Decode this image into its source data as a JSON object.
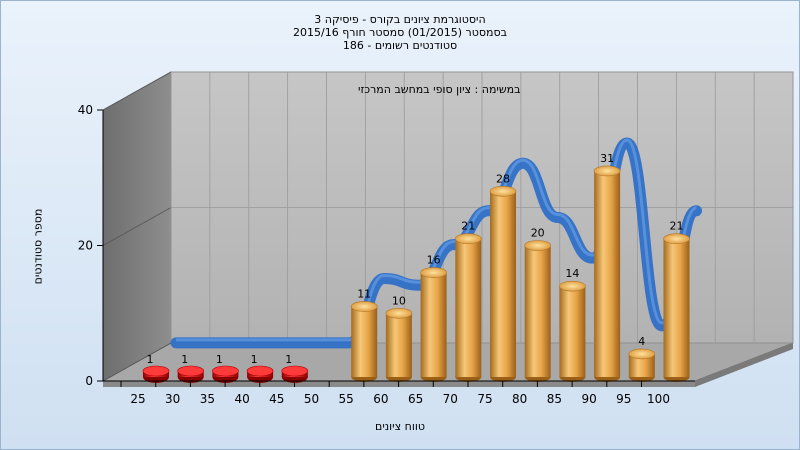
{
  "header": {
    "line1": "היסטוגרמת ציונים בקורס - פיסיקה 3",
    "line2": "בסמסטר  (01/2015)  סמסטר חורף 2015/16",
    "line3": "186 - סטודנטים רשומים"
  },
  "colors": {
    "bar_gold": "#e9a94a",
    "bar_red": "#dd1111",
    "curve_blue": "#2f6fc6",
    "wall": "#8c8c8c",
    "plot_bg": "#bdbdbd"
  },
  "chart_data": {
    "type": "bar",
    "title": "היסטוגרמת ציונים בקורס - פיסיקה 3",
    "annotation": "במשימה : ציון סופי במחשב המרכזי",
    "xlabel": "טווח ציונים",
    "ylabel": "מספר סטודנטים",
    "categories": [
      "25",
      "30",
      "35",
      "40",
      "45",
      "50",
      "55",
      "60",
      "65",
      "70",
      "75",
      "80",
      "85",
      "90",
      "95",
      "100"
    ],
    "values": [
      1,
      1,
      1,
      1,
      1,
      0,
      11,
      10,
      16,
      21,
      28,
      20,
      14,
      31,
      4,
      21
    ],
    "value_labels": [
      "1",
      "1",
      "1",
      "1",
      "1",
      "",
      "11",
      "10",
      "16",
      "21",
      "28",
      "20",
      "14",
      "31",
      "4",
      "21"
    ],
    "highlight_red_categories": [
      "25",
      "30",
      "35",
      "40",
      "45"
    ],
    "yticks": [
      "0",
      "20",
      "40"
    ],
    "ylim": [
      0,
      40
    ],
    "grid": true,
    "projection_3d": true
  }
}
